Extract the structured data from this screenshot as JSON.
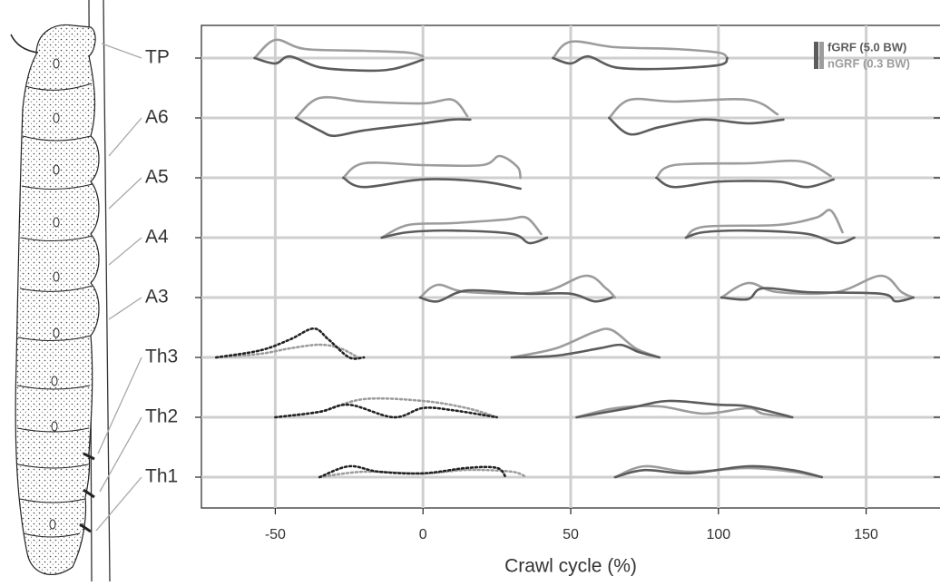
{
  "chart_data": {
    "type": "trace-rows",
    "xlabel": "Crawl cycle (%)",
    "xlim": [
      -75,
      175
    ],
    "xticks": [
      -50,
      0,
      50,
      100,
      150
    ],
    "grid": true,
    "legend_position": "upper right",
    "legend": {
      "fGRF": {
        "label": "fGRF (5.0 BW)",
        "scale": 5.0,
        "color": "#5c5c5c"
      },
      "nGRF": {
        "label": "nGRF (0.3 BW)",
        "scale": 0.3,
        "color": "#9c9c9c"
      }
    },
    "rows": [
      {
        "label": "TP",
        "fGRF": [
          {
            "color": "#5c5c5c",
            "dash": false,
            "x": [
              -57,
              -50,
              -45,
              -35,
              -20,
              -10,
              0
            ],
            "values": [
              0,
              -1,
              0.3,
              -1.7,
              -2.3,
              -2,
              -0.3
            ]
          },
          {
            "color": "#5c5c5c",
            "dash": false,
            "x": [
              44,
              50,
              56,
              65,
              80,
              100,
              103
            ],
            "values": [
              0,
              -1,
              0.3,
              -1.7,
              -2,
              -1.3,
              0
            ]
          }
        ],
        "nGRF": [
          {
            "color": "#9c9c9c",
            "dash": false,
            "x": [
              -57,
              -50,
              -40,
              -20,
              -5,
              0
            ],
            "values": [
              0,
              0.2,
              0.1,
              0.08,
              0.06,
              0.02
            ]
          },
          {
            "color": "#9c9c9c",
            "dash": false,
            "x": [
              44,
              50,
              65,
              85,
              100,
              103
            ],
            "values": [
              0,
              0.18,
              0.12,
              0.1,
              0.06,
              0
            ]
          }
        ]
      },
      {
        "label": "A6",
        "fGRF": [
          {
            "color": "#5c5c5c",
            "dash": false,
            "x": [
              -43,
              -35,
              -30,
              -20,
              0,
              10,
              16
            ],
            "values": [
              0,
              -2.3,
              -3.3,
              -2.3,
              -1,
              -0.3,
              -0.3
            ]
          },
          {
            "color": "#5c5c5c",
            "dash": false,
            "x": [
              63,
              70,
              80,
              95,
              110,
              122
            ],
            "values": [
              0,
              -3,
              -1.7,
              -0.3,
              -1,
              -0.3
            ]
          }
        ],
        "nGRF": [
          {
            "color": "#9c9c9c",
            "dash": false,
            "x": [
              -43,
              -35,
              -20,
              0,
              10,
              15
            ],
            "values": [
              0,
              0.22,
              0.18,
              0.16,
              0.2,
              0.02
            ]
          },
          {
            "color": "#9c9c9c",
            "dash": false,
            "x": [
              63,
              70,
              85,
              110,
              120
            ],
            "values": [
              0,
              0.2,
              0.18,
              0.2,
              0.04
            ]
          }
        ]
      },
      {
        "label": "A5",
        "fGRF": [
          {
            "color": "#5c5c5c",
            "dash": false,
            "x": [
              -27,
              -20,
              0,
              20,
              33
            ],
            "values": [
              0,
              -1.7,
              -0.3,
              -0.7,
              -2
            ]
          },
          {
            "color": "#5c5c5c",
            "dash": false,
            "x": [
              79,
              85,
              100,
              120,
              130,
              139
            ],
            "values": [
              0,
              -1.7,
              -0.7,
              -0.7,
              -1.7,
              -0.3
            ]
          }
        ],
        "nGRF": [
          {
            "color": "#9c9c9c",
            "dash": false,
            "x": [
              -27,
              -20,
              0,
              20,
              26,
              32,
              33
            ],
            "values": [
              0,
              0.16,
              0.14,
              0.14,
              0.24,
              0.12,
              0
            ]
          },
          {
            "color": "#9c9c9c",
            "dash": false,
            "x": [
              79,
              85,
              110,
              128,
              138
            ],
            "values": [
              0,
              0.14,
              0.16,
              0.18,
              0.02
            ]
          }
        ]
      },
      {
        "label": "A4",
        "fGRF": [
          {
            "color": "#5c5c5c",
            "dash": false,
            "x": [
              -14,
              -5,
              10,
              30,
              36,
              42
            ],
            "values": [
              0,
              1,
              1.3,
              0.7,
              -1,
              0
            ]
          },
          {
            "color": "#5c5c5c",
            "dash": false,
            "x": [
              89,
              95,
              110,
              130,
              140,
              146
            ],
            "values": [
              0,
              1,
              1.3,
              0.7,
              -1,
              0
            ]
          }
        ],
        "nGRF": [
          {
            "color": "#9c9c9c",
            "dash": false,
            "x": [
              -14,
              -5,
              10,
              28,
              35,
              40
            ],
            "values": [
              0,
              0.14,
              0.16,
              0.2,
              0.22,
              0.04
            ]
          },
          {
            "color": "#9c9c9c",
            "dash": false,
            "x": [
              89,
              95,
              120,
              133,
              138,
              142
            ],
            "values": [
              0,
              0.12,
              0.14,
              0.22,
              0.3,
              0.06
            ]
          }
        ]
      },
      {
        "label": "A3",
        "fGRF": [
          {
            "color": "#5c5c5c",
            "dash": false,
            "x": [
              -1,
              5,
              15,
              35,
              50,
              58,
              64
            ],
            "values": [
              0,
              -0.7,
              1.3,
              0.7,
              0.7,
              -0.7,
              0
            ]
          },
          {
            "color": "#5c5c5c",
            "dash": false,
            "x": [
              101,
              110,
              115,
              130,
              155,
              160,
              166
            ],
            "values": [
              0,
              -0.3,
              1.7,
              1,
              0.7,
              -0.7,
              0
            ]
          }
        ],
        "nGRF": [
          {
            "color": "#9c9c9c",
            "dash": false,
            "x": [
              -1,
              5,
              15,
              40,
              55,
              62,
              65
            ],
            "values": [
              0,
              0.14,
              0.06,
              0.06,
              0.24,
              0.1,
              0
            ]
          },
          {
            "color": "#9c9c9c",
            "dash": false,
            "x": [
              101,
              110,
              120,
              140,
              155,
              162,
              166
            ],
            "values": [
              0,
              0.16,
              0.06,
              0.06,
              0.24,
              0.06,
              0
            ]
          }
        ]
      },
      {
        "label": "Th3",
        "fGRF": [
          {
            "color": "#222222",
            "dash": true,
            "x": [
              -70,
              -55,
              -45,
              -37,
              -32,
              -25,
              -20
            ],
            "values": [
              0,
              1.3,
              3.3,
              5.3,
              3.3,
              0,
              0
            ]
          },
          {
            "color": "#5c5c5c",
            "dash": false,
            "x": [
              30,
              45,
              60,
              67,
              73,
              80
            ],
            "values": [
              0,
              0.3,
              1.7,
              2.3,
              1,
              0
            ]
          }
        ],
        "nGRF": [
          {
            "color": "#9c9c9c",
            "dash": true,
            "x": [
              -70,
              -55,
              -45,
              -35,
              -28,
              -22
            ],
            "values": [
              0,
              0.04,
              0.1,
              0.14,
              0.1,
              0
            ]
          },
          {
            "color": "#9c9c9c",
            "dash": false,
            "x": [
              30,
              45,
              58,
              64,
              72,
              80
            ],
            "values": [
              0,
              0.1,
              0.28,
              0.3,
              0.1,
              0
            ]
          }
        ]
      },
      {
        "label": "Th2",
        "fGRF": [
          {
            "color": "#222222",
            "dash": true,
            "x": [
              -50,
              -35,
              -25,
              -10,
              0,
              10,
              25
            ],
            "values": [
              0,
              1,
              2.3,
              0,
              1.7,
              1.3,
              0
            ]
          },
          {
            "color": "#5c5c5c",
            "dash": false,
            "x": [
              52,
              70,
              83,
              100,
              110,
              125
            ],
            "values": [
              0,
              1.7,
              3,
              2.3,
              2,
              0
            ]
          }
        ],
        "nGRF": [
          {
            "color": "#9c9c9c",
            "dash": true,
            "x": [
              -50,
              -35,
              -20,
              0,
              15,
              25
            ],
            "values": [
              0,
              0.06,
              0.2,
              0.18,
              0.1,
              0
            ]
          },
          {
            "color": "#9c9c9c",
            "dash": false,
            "x": [
              52,
              65,
              80,
              95,
              110,
              115,
              125
            ],
            "values": [
              0,
              0.1,
              0.12,
              0.04,
              0.1,
              0.04,
              0
            ]
          }
        ]
      },
      {
        "label": "Th1",
        "fGRF": [
          {
            "color": "#222222",
            "dash": true,
            "x": [
              -35,
              -25,
              -15,
              0,
              15,
              25,
              28
            ],
            "values": [
              0,
              2,
              1,
              0.7,
              1.7,
              1.7,
              0
            ]
          },
          {
            "color": "#5c5c5c",
            "dash": false,
            "x": [
              65,
              75,
              90,
              110,
              125,
              135
            ],
            "values": [
              0,
              1.3,
              0.7,
              2,
              1.3,
              0
            ]
          }
        ],
        "nGRF": [
          {
            "color": "#9c9c9c",
            "dash": true,
            "x": [
              -35,
              -20,
              0,
              15,
              30,
              35
            ],
            "values": [
              0,
              0.06,
              0.04,
              0.08,
              0.06,
              0
            ]
          },
          {
            "color": "#9c9c9c",
            "dash": false,
            "x": [
              65,
              75,
              90,
              110,
              125,
              135
            ],
            "values": [
              0,
              0.12,
              0.06,
              0.1,
              0.06,
              0
            ]
          }
        ]
      }
    ]
  }
}
